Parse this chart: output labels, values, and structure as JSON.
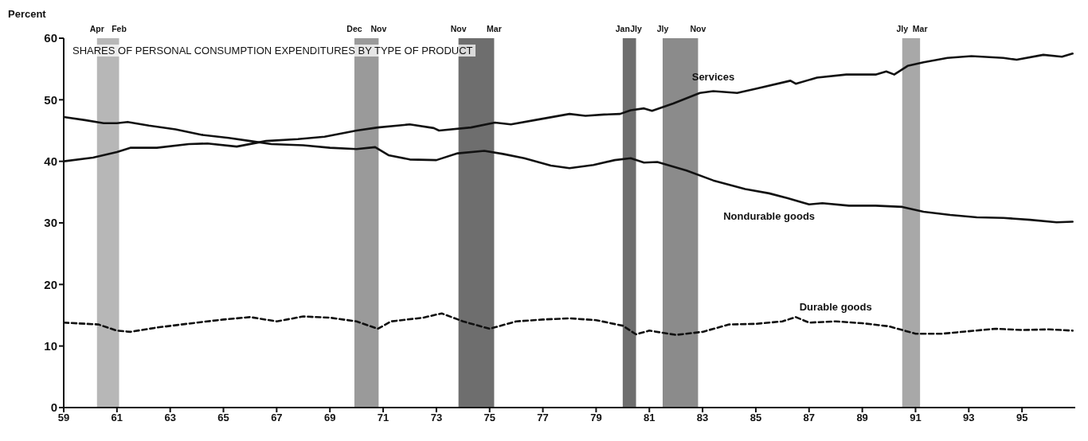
{
  "chart_data": {
    "type": "line",
    "title": "SHARES OF PERSONAL CONSUMPTION EXPENDITURES BY TYPE OF PRODUCT",
    "ylabel": "Percent",
    "xlim": [
      1959,
      1997
    ],
    "xticks": [
      {
        "value": 1959,
        "label": "59"
      },
      {
        "value": 1961,
        "label": "61"
      },
      {
        "value": 1963,
        "label": "63"
      },
      {
        "value": 1965,
        "label": "65"
      },
      {
        "value": 1967,
        "label": "67"
      },
      {
        "value": 1969,
        "label": "69"
      },
      {
        "value": 1971,
        "label": "71"
      },
      {
        "value": 1973,
        "label": "73"
      },
      {
        "value": 1975,
        "label": "75"
      },
      {
        "value": 1977,
        "label": "77"
      },
      {
        "value": 1979,
        "label": "79"
      },
      {
        "value": 1981,
        "label": "81"
      },
      {
        "value": 1983,
        "label": "83"
      },
      {
        "value": 1985,
        "label": "85"
      },
      {
        "value": 1987,
        "label": "87"
      },
      {
        "value": 1989,
        "label": "89"
      },
      {
        "value": 1991,
        "label": "91"
      },
      {
        "value": 1993,
        "label": "93"
      },
      {
        "value": 1995,
        "label": "95"
      }
    ],
    "ylim": [
      0,
      60
    ],
    "yticks": [
      0,
      10,
      20,
      30,
      40,
      50,
      60
    ],
    "series": [
      {
        "name": "Services",
        "color": "#111111",
        "line_style": "solid",
        "x": [
          1959.0,
          1960.1,
          1961.0,
          1961.5,
          1962.5,
          1963.7,
          1964.4,
          1965.5,
          1966.6,
          1967.8,
          1968.8,
          1970.0,
          1970.8,
          1972.0,
          1972.9,
          1973.1,
          1974.3,
          1975.2,
          1975.8,
          1976.7,
          1978.0,
          1978.6,
          1979.3,
          1979.9,
          1980.3,
          1980.8,
          1981.1,
          1981.9,
          1982.9,
          1983.4,
          1984.3,
          1985.0,
          1986.3,
          1986.5,
          1987.3,
          1988.4,
          1989.5,
          1989.9,
          1990.2,
          1990.7,
          1991.3,
          1992.2,
          1993.1,
          1994.3,
          1994.8,
          1995.8,
          1996.5,
          1996.9
        ],
        "values": [
          40.0,
          40.6,
          41.5,
          42.2,
          42.2,
          42.8,
          42.9,
          42.4,
          43.3,
          43.6,
          44.0,
          45.0,
          45.5,
          46.0,
          45.4,
          45.0,
          45.5,
          46.3,
          46.0,
          46.7,
          47.7,
          47.4,
          47.6,
          47.7,
          48.3,
          48.6,
          48.2,
          49.4,
          51.1,
          51.4,
          51.1,
          51.8,
          53.1,
          52.6,
          53.6,
          54.1,
          54.1,
          54.6,
          54.1,
          55.5,
          56.1,
          56.8,
          57.1,
          56.8,
          56.5,
          57.3,
          57.0,
          57.5
        ]
      },
      {
        "name": "Nondurable goods",
        "color": "#111111",
        "line_style": "solid",
        "x": [
          1959.0,
          1959.8,
          1960.5,
          1961.0,
          1961.4,
          1962.2,
          1963.2,
          1964.2,
          1965.2,
          1966.0,
          1966.8,
          1968.0,
          1969.0,
          1970.0,
          1970.7,
          1971.2,
          1972.0,
          1973.0,
          1973.8,
          1974.8,
          1975.5,
          1976.3,
          1977.3,
          1978.0,
          1978.9,
          1979.7,
          1980.3,
          1980.8,
          1981.3,
          1982.4,
          1983.4,
          1984.6,
          1985.5,
          1986.2,
          1987.0,
          1987.5,
          1988.5,
          1989.5,
          1990.5,
          1991.3,
          1992.3,
          1993.3,
          1994.3,
          1995.3,
          1996.3,
          1996.9
        ],
        "values": [
          47.2,
          46.7,
          46.2,
          46.2,
          46.4,
          45.8,
          45.2,
          44.3,
          43.8,
          43.3,
          42.8,
          42.6,
          42.2,
          42.0,
          42.3,
          41.0,
          40.3,
          40.2,
          41.3,
          41.7,
          41.2,
          40.5,
          39.3,
          38.9,
          39.4,
          40.2,
          40.5,
          39.8,
          39.9,
          38.5,
          36.9,
          35.5,
          34.8,
          34.0,
          33.0,
          33.2,
          32.8,
          32.8,
          32.6,
          31.8,
          31.3,
          30.9,
          30.8,
          30.5,
          30.1,
          30.2
        ]
      },
      {
        "name": "Durable goods",
        "color": "#111111",
        "line_style": "dashed",
        "x": [
          1959.0,
          1960.3,
          1961.0,
          1961.5,
          1962.5,
          1964.0,
          1965.0,
          1966.0,
          1967.0,
          1968.0,
          1969.0,
          1970.0,
          1970.8,
          1971.3,
          1972.5,
          1973.2,
          1974.0,
          1975.0,
          1976.0,
          1977.0,
          1978.0,
          1979.0,
          1980.0,
          1980.5,
          1981.0,
          1982.0,
          1983.0,
          1984.0,
          1985.0,
          1986.0,
          1986.5,
          1987.0,
          1988.0,
          1989.0,
          1990.0,
          1991.0,
          1992.0,
          1993.0,
          1994.0,
          1995.0,
          1996.0,
          1996.9
        ],
        "values": [
          13.8,
          13.5,
          12.5,
          12.3,
          13.0,
          13.8,
          14.3,
          14.7,
          14.0,
          14.8,
          14.6,
          14.0,
          12.8,
          14.0,
          14.6,
          15.3,
          14.0,
          12.8,
          14.0,
          14.3,
          14.5,
          14.2,
          13.3,
          11.9,
          12.5,
          11.8,
          12.3,
          13.5,
          13.6,
          14.0,
          14.7,
          13.8,
          14.0,
          13.7,
          13.2,
          12.0,
          12.0,
          12.4,
          12.8,
          12.6,
          12.7,
          12.5
        ]
      }
    ],
    "bands": [
      {
        "axis": "x",
        "from": 1960.25,
        "to": 1961.08,
        "color": "#aaaaaa"
      },
      {
        "axis": "x",
        "from": 1969.92,
        "to": 1970.83,
        "color": "#888888"
      },
      {
        "axis": "x",
        "from": 1973.83,
        "to": 1975.17,
        "color": "#555555"
      },
      {
        "axis": "x",
        "from": 1980.0,
        "to": 1980.5,
        "color": "#555555"
      },
      {
        "axis": "x",
        "from": 1981.5,
        "to": 1982.83,
        "color": "#777777"
      },
      {
        "axis": "x",
        "from": 1990.5,
        "to": 1991.17,
        "color": "#999999"
      }
    ],
    "annotations": [
      {
        "text": "Apr",
        "x": 1960.25,
        "y": 60
      },
      {
        "text": "Feb",
        "x": 1961.08,
        "y": 60
      },
      {
        "text": "Dec",
        "x": 1969.92,
        "y": 60
      },
      {
        "text": "Nov",
        "x": 1970.83,
        "y": 60
      },
      {
        "text": "Nov",
        "x": 1973.83,
        "y": 60
      },
      {
        "text": "Mar",
        "x": 1975.17,
        "y": 60
      },
      {
        "text": "Jan",
        "x": 1980.0,
        "y": 60
      },
      {
        "text": "Jly",
        "x": 1980.5,
        "y": 60
      },
      {
        "text": "Jly",
        "x": 1981.5,
        "y": 60
      },
      {
        "text": "Nov",
        "x": 1982.83,
        "y": 60
      },
      {
        "text": "Jly",
        "x": 1990.5,
        "y": 60
      },
      {
        "text": "Mar",
        "x": 1991.17,
        "y": 60
      }
    ]
  }
}
